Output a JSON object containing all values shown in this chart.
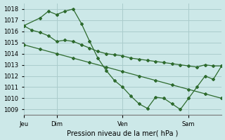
{
  "background_color": "#cce8e8",
  "grid_color": "#aacccc",
  "line_color": "#2d6a2d",
  "title": "Pression niveau de la mer( hPa )",
  "ylim": [
    1008.5,
    1018.5
  ],
  "yticks": [
    1009,
    1010,
    1011,
    1012,
    1013,
    1014,
    1015,
    1016,
    1017,
    1018
  ],
  "xlim": [
    0,
    144
  ],
  "xlabel_ticks": [
    0,
    24,
    72,
    120
  ],
  "xlabel_labels": [
    "Jeu",
    "Dim",
    "Ven",
    "Sam"
  ],
  "series1_x": [
    0,
    6,
    12,
    18,
    24,
    30,
    36,
    42,
    48,
    54,
    60,
    66,
    72,
    78,
    84,
    90,
    96,
    102,
    108,
    114,
    120,
    126,
    132,
    138,
    144
  ],
  "series1_y": [
    1016.5,
    1016.1,
    1015.9,
    1015.6,
    1015.1,
    1015.2,
    1015.1,
    1014.8,
    1014.5,
    1014.2,
    1014.0,
    1013.9,
    1013.8,
    1013.6,
    1013.5,
    1013.4,
    1013.3,
    1013.2,
    1013.1,
    1013.0,
    1012.9,
    1012.8,
    1013.0,
    1012.9,
    1012.9
  ],
  "series2_x": [
    0,
    12,
    24,
    36,
    48,
    60,
    72,
    84,
    96,
    108,
    120,
    132,
    144
  ],
  "series2_y": [
    1014.8,
    1014.4,
    1014.0,
    1013.6,
    1013.2,
    1012.8,
    1012.4,
    1012.0,
    1011.6,
    1011.2,
    1010.8,
    1010.4,
    1010.0
  ],
  "series3_x": [
    0,
    12,
    18,
    24,
    30,
    36,
    42,
    48,
    54,
    60,
    66,
    72,
    78,
    84,
    90,
    96,
    102,
    108,
    114,
    120,
    126,
    132,
    138,
    144
  ],
  "series3_y": [
    1016.5,
    1017.2,
    1017.8,
    1017.5,
    1017.8,
    1018.0,
    1016.7,
    1015.1,
    1013.6,
    1012.5,
    1011.6,
    1011.0,
    1010.2,
    1009.5,
    1009.1,
    1010.1,
    1010.0,
    1009.5,
    1009.0,
    1010.0,
    1011.0,
    1012.0,
    1011.7,
    1012.9
  ]
}
